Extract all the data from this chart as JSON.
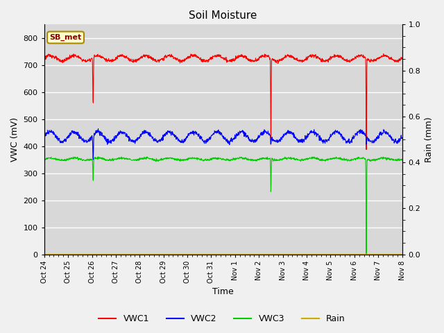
{
  "title": "Soil Moisture",
  "xlabel": "Time",
  "ylabel_left": "VWC (mV)",
  "ylabel_right": "Rain (mm)",
  "ylim_left": [
    0,
    850
  ],
  "ylim_right": [
    0.0,
    1.0
  ],
  "yticks_left": [
    0,
    100,
    200,
    300,
    400,
    500,
    600,
    700,
    800
  ],
  "yticks_right": [
    0.0,
    0.2,
    0.4,
    0.6,
    0.8,
    1.0
  ],
  "x_labels": [
    "Oct 24",
    "Oct 25",
    "Oct 26",
    "Oct 27",
    "Oct 28",
    "Oct 29",
    "Oct 30",
    "Oct 31",
    "Nov 1",
    "Nov 2",
    "Nov 3",
    "Nov 4",
    "Nov 5",
    "Nov 6",
    "Nov 7",
    "Nov 8"
  ],
  "legend_labels": [
    "VWC1",
    "VWC2",
    "VWC3",
    "Rain"
  ],
  "legend_colors": [
    "#ff0000",
    "#0000ff",
    "#00cc00",
    "#ccaa00"
  ],
  "annotation_label": "SB_met",
  "plot_bg_color": "#d8d8d8",
  "fig_bg_color": "#f0f0f0",
  "grid_color": "#ffffff",
  "vwc1_base": 725,
  "vwc1_amp": 10,
  "vwc2_base": 435,
  "vwc2_amp": 18,
  "vwc3_base": 352,
  "vwc3_amp": 4,
  "n_days": 15,
  "n_per_day": 96
}
